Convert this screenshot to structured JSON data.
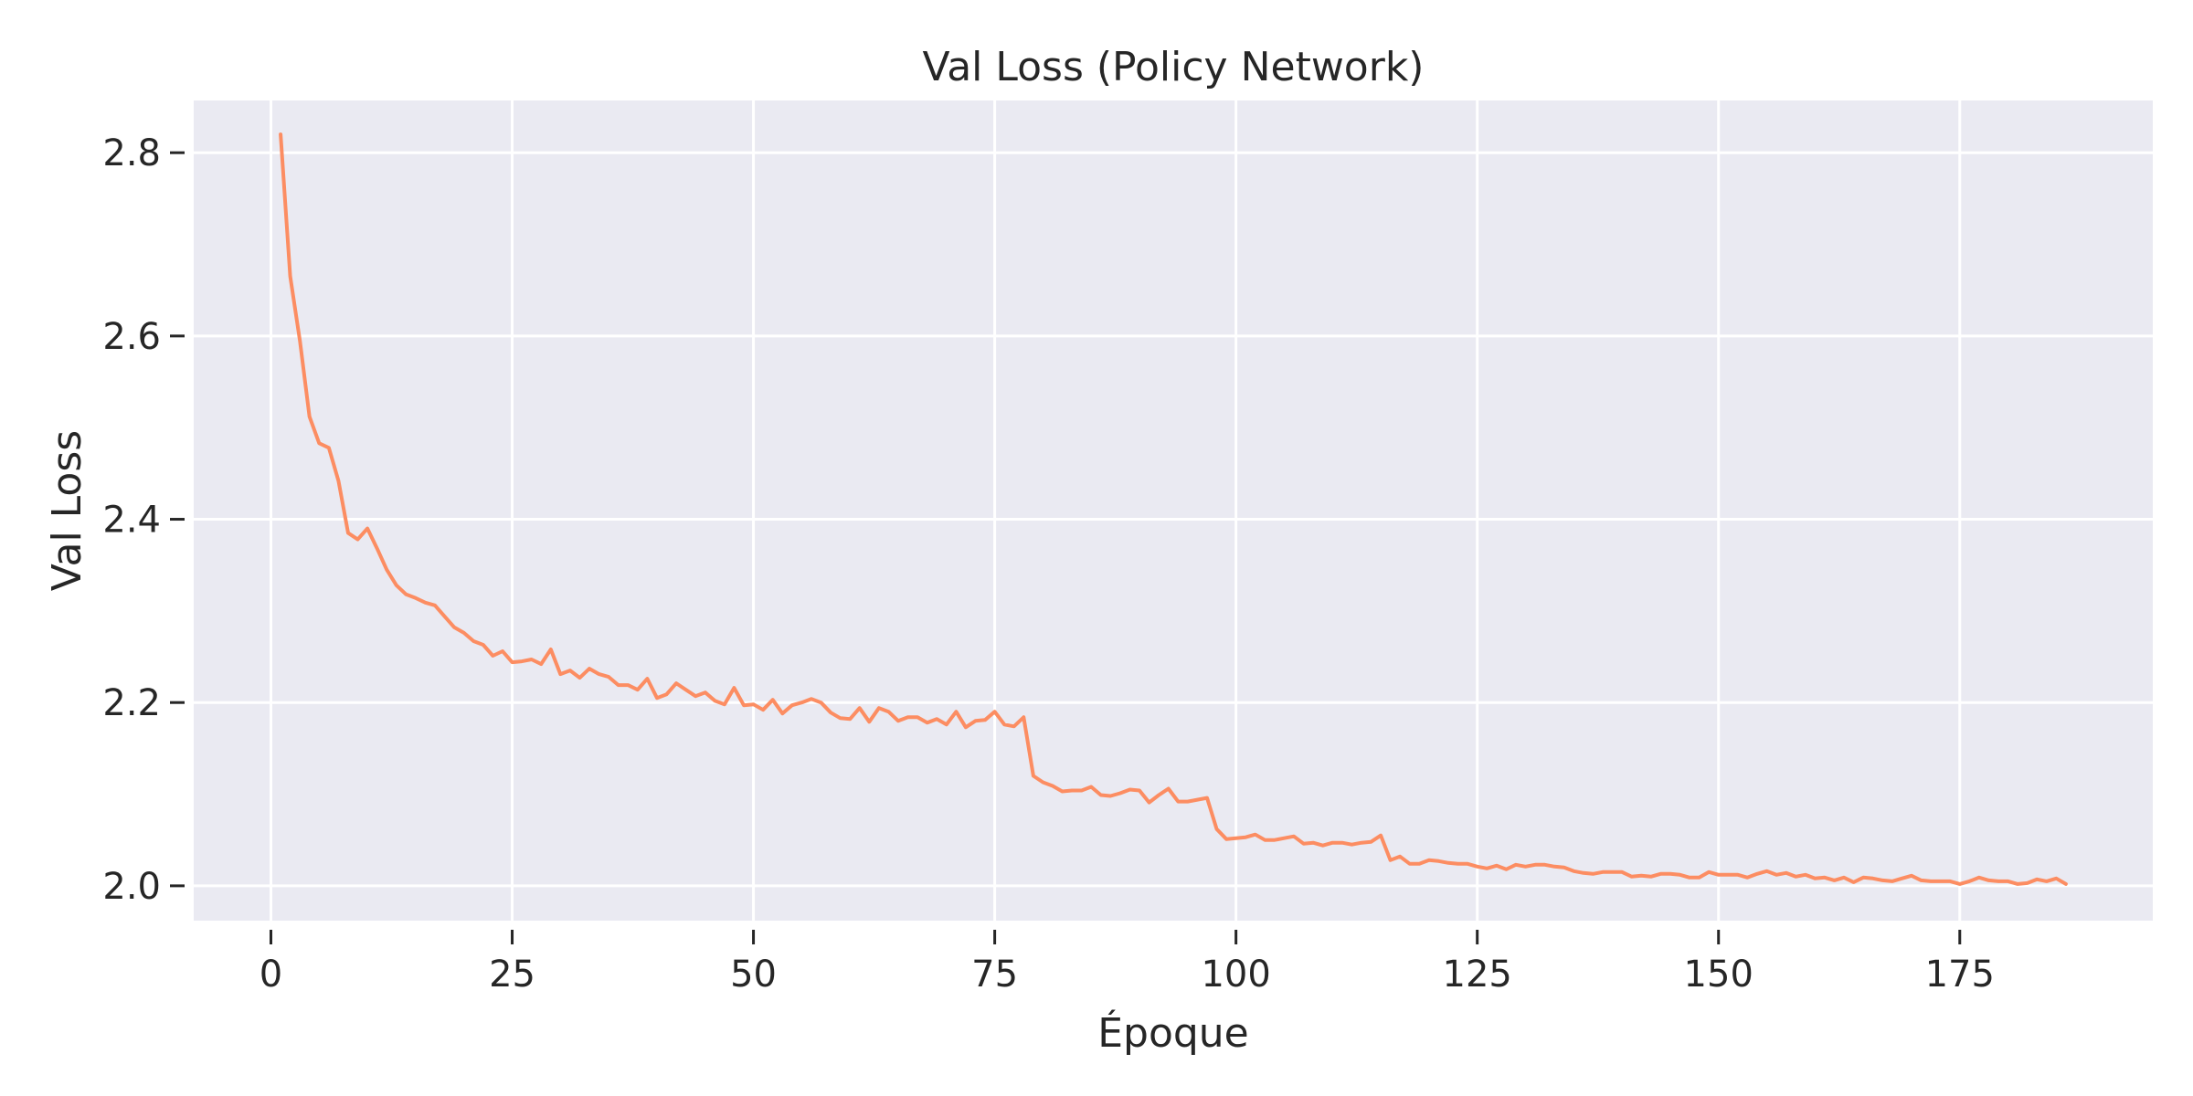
{
  "chart_data": {
    "type": "line",
    "title": "Val Loss (Policy Network)",
    "xlabel": "Époque",
    "ylabel": "Val Loss",
    "xlim": [
      -8,
      195
    ],
    "ylim": [
      1.962,
      2.857
    ],
    "xticks": [
      0,
      25,
      50,
      75,
      100,
      125,
      150,
      175
    ],
    "xtick_labels": [
      "0",
      "25",
      "50",
      "75",
      "100",
      "125",
      "150",
      "175"
    ],
    "yticks": [
      2.0,
      2.2,
      2.4,
      2.6,
      2.8
    ],
    "ytick_labels": [
      "2.0",
      "2.2",
      "2.4",
      "2.6",
      "2.8"
    ],
    "grid": true,
    "background": "#eaeaf2",
    "grid_color": "#ffffff",
    "line_color": "#fc8d62",
    "series": [
      {
        "x": [
          1,
          2,
          3,
          4,
          5,
          6,
          7,
          8,
          9,
          10,
          11,
          12,
          13,
          14,
          15,
          16,
          17,
          18,
          19,
          20,
          21,
          22,
          23,
          24,
          25,
          26,
          27,
          28,
          29,
          30,
          31,
          32,
          33,
          34,
          35,
          36,
          37,
          38,
          39,
          40,
          41,
          42,
          43,
          44,
          45,
          46,
          47,
          48,
          49,
          50,
          51,
          52,
          53,
          54,
          55,
          56,
          57,
          58,
          59,
          60,
          61,
          62,
          63,
          64,
          65,
          66,
          67,
          68,
          69,
          70,
          71,
          72,
          73,
          74,
          75,
          76,
          77,
          78,
          79,
          80,
          81,
          82,
          83,
          84,
          85,
          86,
          87,
          88,
          89,
          90,
          91,
          92,
          93,
          94,
          95,
          96,
          97,
          98,
          99,
          100,
          101,
          102,
          103,
          104,
          105,
          106,
          107,
          108,
          109,
          110,
          111,
          112,
          113,
          114,
          115,
          116,
          117,
          118,
          119,
          120,
          121,
          122,
          123,
          124,
          125,
          126,
          127,
          128,
          129,
          130,
          131,
          132,
          133,
          134,
          135,
          136,
          137,
          138,
          139,
          140,
          141,
          142,
          143,
          144,
          145,
          146,
          147,
          148,
          149,
          150,
          151,
          152,
          153,
          154,
          155,
          156,
          157,
          158,
          159,
          160,
          161,
          162,
          163,
          164,
          165,
          166,
          167,
          168,
          169,
          170,
          171,
          172,
          173,
          174,
          175,
          176,
          177,
          178,
          179,
          180,
          181,
          182,
          183,
          184,
          185,
          186
        ],
        "y": [
          2.82,
          2.665,
          2.595,
          2.512,
          2.483,
          2.478,
          2.442,
          2.385,
          2.378,
          2.39,
          2.368,
          2.345,
          2.328,
          2.318,
          2.314,
          2.309,
          2.306,
          2.294,
          2.282,
          2.276,
          2.267,
          2.263,
          2.251,
          2.256,
          2.244,
          2.245,
          2.247,
          2.242,
          2.258,
          2.231,
          2.235,
          2.227,
          2.237,
          2.231,
          2.228,
          2.219,
          2.219,
          2.214,
          2.226,
          2.205,
          2.209,
          2.221,
          2.214,
          2.207,
          2.211,
          2.202,
          2.198,
          2.216,
          2.197,
          2.198,
          2.192,
          2.203,
          2.188,
          2.197,
          2.2,
          2.204,
          2.2,
          2.189,
          2.183,
          2.182,
          2.194,
          2.179,
          2.194,
          2.19,
          2.18,
          2.184,
          2.184,
          2.178,
          2.182,
          2.176,
          2.19,
          2.173,
          2.18,
          2.181,
          2.19,
          2.176,
          2.174,
          2.184,
          2.12,
          2.113,
          2.109,
          2.103,
          2.104,
          2.104,
          2.108,
          2.099,
          2.098,
          2.101,
          2.105,
          2.104,
          2.091,
          2.099,
          2.106,
          2.092,
          2.092,
          2.094,
          2.096,
          2.062,
          2.051,
          2.052,
          2.053,
          2.056,
          2.05,
          2.05,
          2.052,
          2.054,
          2.046,
          2.047,
          2.044,
          2.047,
          2.047,
          2.045,
          2.047,
          2.048,
          2.055,
          2.028,
          2.032,
          2.024,
          2.024,
          2.028,
          2.027,
          2.025,
          2.024,
          2.024,
          2.021,
          2.019,
          2.022,
          2.018,
          2.023,
          2.021,
          2.023,
          2.023,
          2.021,
          2.02,
          2.016,
          2.014,
          2.013,
          2.015,
          2.015,
          2.015,
          2.01,
          2.011,
          2.01,
          2.013,
          2.013,
          2.012,
          2.009,
          2.009,
          2.015,
          2.012,
          2.012,
          2.012,
          2.009,
          2.013,
          2.016,
          2.012,
          2.014,
          2.01,
          2.012,
          2.008,
          2.009,
          2.006,
          2.009,
          2.004,
          2.009,
          2.008,
          2.006,
          2.005,
          2.008,
          2.011,
          2.006,
          2.005,
          2.005,
          2.005,
          2.002,
          2.005,
          2.009,
          2.006,
          2.005,
          2.005,
          2.002,
          2.003,
          2.007,
          2.005,
          2.008,
          2.002
        ]
      }
    ]
  }
}
